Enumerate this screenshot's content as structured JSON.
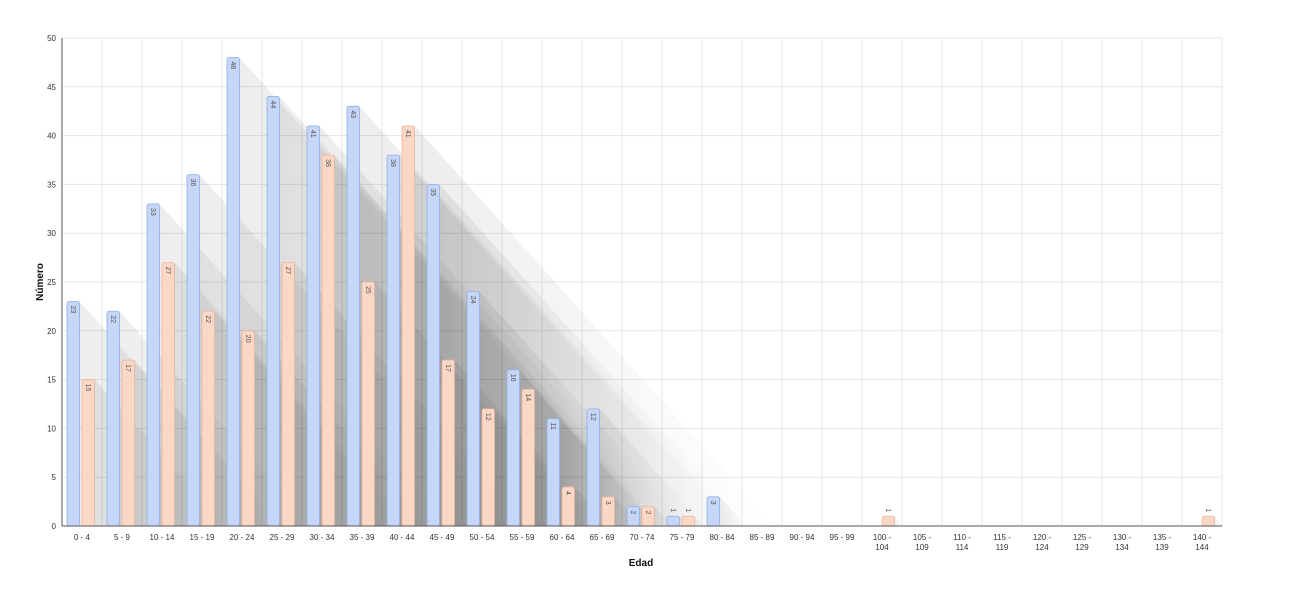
{
  "chart_data": {
    "type": "bar",
    "title": "",
    "xlabel": "Edad",
    "ylabel": "Número",
    "ylim": [
      0,
      50
    ],
    "yticks": [
      0,
      5,
      10,
      15,
      20,
      25,
      30,
      35,
      40,
      45,
      50
    ],
    "grid": true,
    "categories": [
      "0 - 4",
      "5 - 9",
      "10 - 14",
      "15 - 19",
      "20 - 24",
      "25 - 29",
      "30 - 34",
      "35 - 39",
      "40 - 44",
      "45 - 49",
      "50 - 54",
      "55 - 59",
      "60 - 64",
      "65 - 69",
      "70 - 74",
      "75 - 79",
      "80 - 84",
      "85 - 89",
      "90 - 94",
      "95 - 99",
      "100 - 104",
      "105 - 109",
      "110 - 114",
      "115 - 119",
      "120 - 124",
      "125 - 129",
      "130 - 134",
      "135 - 139",
      "140 - 144"
    ],
    "series": [
      {
        "color": "#c5d6f7",
        "stroke": "#8fb0ea",
        "values": [
          23,
          22,
          33,
          36,
          48,
          44,
          41,
          43,
          38,
          35,
          24,
          16,
          11,
          12,
          2,
          1,
          3,
          0,
          0,
          0,
          0,
          0,
          0,
          0,
          0,
          0,
          0,
          0,
          0
        ]
      },
      {
        "color": "#fbd8c6",
        "stroke": "#eeb59a",
        "values": [
          15,
          17,
          27,
          22,
          20,
          27,
          38,
          25,
          41,
          17,
          12,
          14,
          4,
          3,
          2,
          1,
          0,
          0,
          0,
          0,
          1,
          0,
          0,
          0,
          0,
          0,
          0,
          0,
          1
        ]
      }
    ]
  }
}
